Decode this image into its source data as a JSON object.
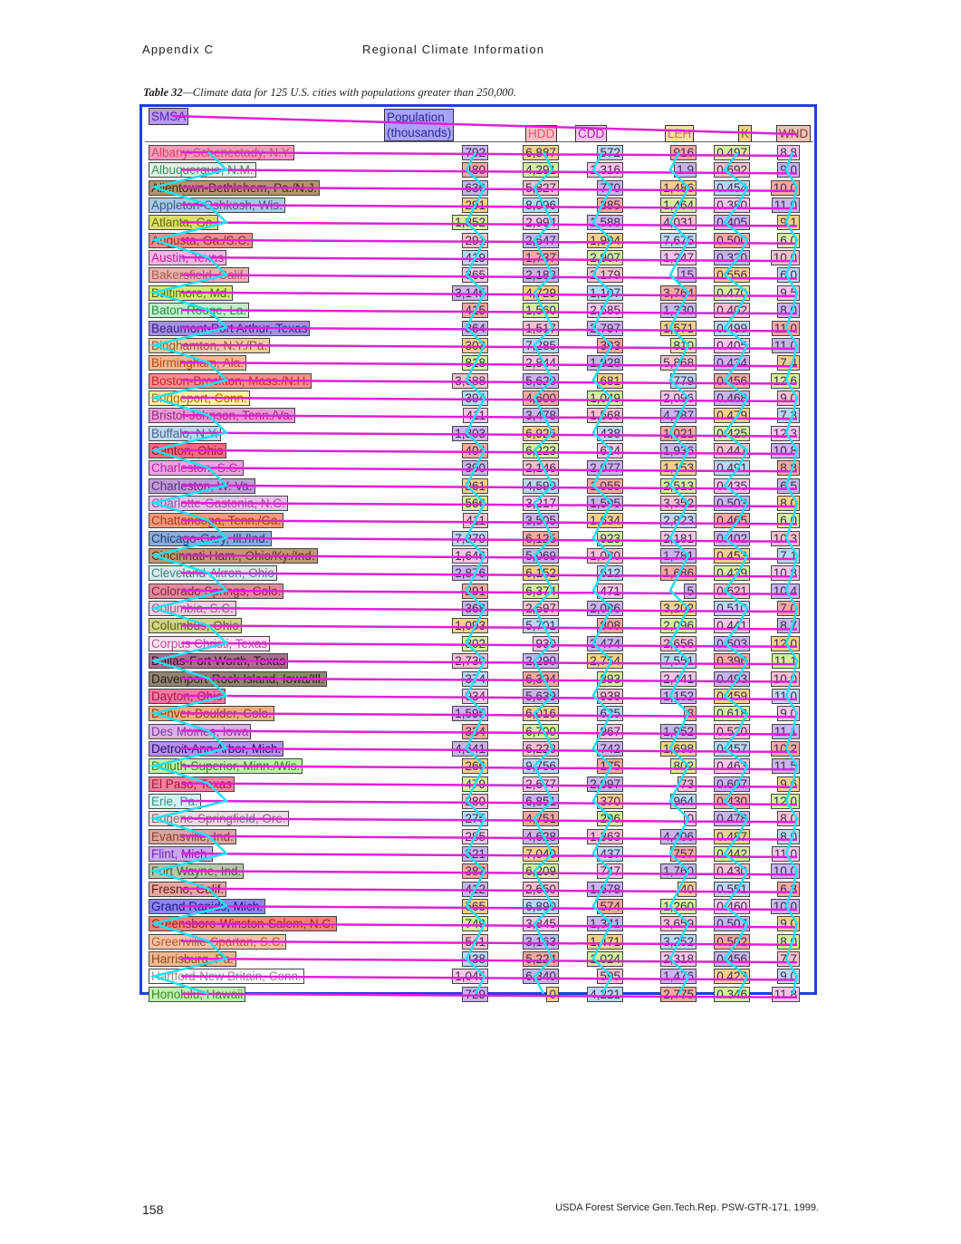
{
  "page": {
    "header_left": "Appendix C",
    "header_center": "Regional Climate Information",
    "caption_label": "Table 32",
    "caption_text": "—Climate data for 125 U.S. cities with populations greater than 250,000.",
    "footer_page": "158",
    "footer_right": "USDA Forest Service Gen.Tech.Rep. PSW-GTR-171. 1999."
  },
  "columns": {
    "smsa": "SMSA",
    "population": "Population\n(thousands)",
    "hdd": "HDD",
    "cdd": "CDD",
    "leh": "LEH",
    "k": "K",
    "wnd": "WND"
  },
  "rows": [
    {
      "name": "Albany-Schenectady, N.Y.",
      "pop": "792",
      "hdd": "6,887",
      "cdd": "572",
      "leh": "916",
      "k": "0.497",
      "wnd": "8.8",
      "bg": "#f49bb7",
      "fg": "#e0466f"
    },
    {
      "name": "Albuquerque, N.M.",
      "pop": "480",
      "hdd": "4,291",
      "cdd": "1,316",
      "leh": "1.9",
      "k": "0.692",
      "wnd": "9.0",
      "bg": "#e1f0e6",
      "fg": "#3f8f5f"
    },
    {
      "name": "Allentown-Bethlehem, Pa./N.J.",
      "pop": "636",
      "hdd": "5,827",
      "cdd": "770",
      "leh": "1,486",
      "k": "0.454",
      "wnd": "10.0",
      "bg": "#b59464",
      "fg": "#3c2c12"
    },
    {
      "name": "Appleton-Oshkosh, Wis.",
      "pop": "291",
      "hdd": "8,096",
      "cdd": "385",
      "leh": "1,464",
      "k": "0.380",
      "wnd": "11.0",
      "bg": "#a8c9e6",
      "fg": "#3c5c7c"
    },
    {
      "name": "Atlanta, Ga.",
      "pop": "1,852",
      "hdd": "2,994",
      "cdd": "1,588",
      "leh": "4,031",
      "k": "0.405",
      "wnd": "9.1",
      "bg": "#d7df6f",
      "fg": "#6c6a00"
    },
    {
      "name": "Augusta, Ga./S.C.",
      "pop": "291",
      "hdd": "2,547",
      "cdd": "1,994",
      "leh": "7,675",
      "k": "0.500",
      "wnd": "6.0",
      "bg": "#f08d8d",
      "fg": "#a12626"
    },
    {
      "name": "Austin, Texas",
      "pop": "419",
      "hdd": "1,737",
      "cdd": "2,907",
      "leh": "1,247",
      "k": "0.320",
      "wnd": "10.0",
      "bg": "#f6b5e6",
      "fg": "#c0249b"
    },
    {
      "name": "Bakersfield, Calif.",
      "pop": "365",
      "hdd": "2,183",
      "cdd": "2,179",
      "leh": "15",
      "k": "0.556",
      "wnd": "6.0",
      "bg": "#e9b3ac",
      "fg": "#a85d51"
    },
    {
      "name": "Baltimore, Md.",
      "pop": "3,145",
      "hdd": "4,729",
      "cdd": "1,107",
      "leh": "3,764",
      "k": "0.470",
      "wnd": "9.5",
      "bg": "#d2ea73",
      "fg": "#52630a"
    },
    {
      "name": "Baton Rouge, La.",
      "pop": "415",
      "hdd": "1,560",
      "cdd": "2,585",
      "leh": "1,330",
      "k": "0.402",
      "wnd": "8.0",
      "bg": "#c1f0c9",
      "fg": "#2c8e47"
    },
    {
      "name": "Beaumont-Port Arthur, Texas",
      "pop": "364",
      "hdd": "1,517",
      "cdd": "2,797",
      "leh": "1,571",
      "k": "0.499",
      "wnd": "11.0",
      "bg": "#a391e0",
      "fg": "#3a1e8c"
    },
    {
      "name": "Binghamton, N.Y./Pa.",
      "pop": "303",
      "hdd": "7,285",
      "cdd": "393",
      "leh": "810",
      "k": "0.405",
      "wnd": "11.0",
      "bg": "#f1caa0",
      "fg": "#8a5d2a"
    },
    {
      "name": "Birmingham, Ala.",
      "pop": "818",
      "hdd": "2,844",
      "cdd": "1,928",
      "leh": "5,868",
      "k": "0.434",
      "wnd": "7.4",
      "bg": "#f7b692",
      "fg": "#b04b13"
    },
    {
      "name": "Boston-Brockton, Mass./N.H.",
      "pop": "3,688",
      "hdd": "5,620",
      "cdd": "681",
      "leh": "779",
      "k": "0.456",
      "wnd": "12.6",
      "bg": "#f58e8e",
      "fg": "#c42b2b"
    },
    {
      "name": "Bridgeport, Conn.",
      "pop": "394",
      "hdd": "4,600",
      "cdd": "1,049",
      "leh": "2,096",
      "k": "0.468",
      "wnd": "9.0",
      "bg": "#fff0a4",
      "fg": "#b06a00"
    },
    {
      "name": "Bristol-Johnson, Tenn./Va.",
      "pop": "411",
      "hdd": "3,478",
      "cdd": "1,568",
      "leh": "4,787",
      "k": "0.479",
      "wnd": "7.3",
      "bg": "#e99ad6",
      "fg": "#9c2a7b"
    },
    {
      "name": "Buffalo, N.Y.",
      "pop": "1,303",
      "hdd": "6,926",
      "cdd": "438",
      "leh": "1,021",
      "k": "0.425",
      "wnd": "12.3",
      "bg": "#bfd7ee",
      "fg": "#476a8d"
    },
    {
      "name": "Canton, Ohio",
      "pop": "404",
      "hdd": "6,223",
      "cdd": "624",
      "leh": "1,936",
      "k": "0.441",
      "wnd": "10.8",
      "bg": "#f26b80",
      "fg": "#a8142d"
    },
    {
      "name": "Charleston, S.C.",
      "pop": "390",
      "hdd": "2,146",
      "cdd": "2,077",
      "leh": "1,153",
      "k": "0.491",
      "wnd": "8.8",
      "bg": "#f0a1e3",
      "fg": "#b7289f"
    },
    {
      "name": "Charleston, W. Va.",
      "pop": "261",
      "hdd": "4,590",
      "cdd": "1,055",
      "leh": "2,513",
      "k": "0.435",
      "wnd": "6.5",
      "bg": "#be9bd6",
      "fg": "#5a2f7e"
    },
    {
      "name": "Charlotte-Gastonia, N.C.",
      "pop": "566",
      "hdd": "3,217",
      "cdd": "1,595",
      "leh": "3,352",
      "k": "0.503",
      "wnd": "8.0",
      "bg": "#e7c0ec",
      "fg": "#9a4ea6"
    },
    {
      "name": "Chattanooga, Tenn./Ga.",
      "pop": "411",
      "hdd": "3,505",
      "cdd": "1,634",
      "leh": "2,823",
      "k": "0.465",
      "wnd": "6.0",
      "bg": "#f79a7c",
      "fg": "#a63a18"
    },
    {
      "name": "Chicago-Gary, Ill./Ind.",
      "pop": "7,879",
      "hdd": "6,125",
      "cdd": "923",
      "leh": "2,181",
      "k": "0.402",
      "wnd": "10.3",
      "bg": "#8bacd7",
      "fg": "#1d3e72"
    },
    {
      "name": "Cincinnati-Ham., Ohio/Ky./Ind.",
      "pop": "1,646",
      "hdd": "5,069",
      "cdd": "1,080",
      "leh": "1,781",
      "k": "0.453",
      "wnd": "7.1",
      "bg": "#c09872",
      "fg": "#553315"
    },
    {
      "name": "Cleveland-Akron, Ohio",
      "pop": "2,876",
      "hdd": "6,152",
      "cdd": "612",
      "leh": "1,686",
      "k": "0.439",
      "wnd": "10.8",
      "bg": "#d6ebea",
      "fg": "#4a7f7a"
    },
    {
      "name": "Colorado Springs, Colo.",
      "pop": "291",
      "hdd": "6,374",
      "cdd": "471",
      "leh": "5",
      "k": "0.621",
      "wnd": "10.4",
      "bg": "#e08b9e",
      "fg": "#8a2340"
    },
    {
      "name": "Columbia, S.C.",
      "pop": "368",
      "hdd": "2,597",
      "cdd": "2,086",
      "leh": "3,202",
      "k": "0.510",
      "wnd": "7.0",
      "bg": "#edcfe0",
      "fg": "#a05a86"
    },
    {
      "name": "Columbus, Ohio",
      "pop": "1,093",
      "hdd": "5,701",
      "cdd": "808",
      "leh": "2,096",
      "k": "0.441",
      "wnd": "8.7",
      "bg": "#cfd583",
      "fg": "#5c6212"
    },
    {
      "name": "Corpus Christi, Texas",
      "pop": "302",
      "hdd": "930",
      "cdd": "3,474",
      "leh": "2,656",
      "k": "0.503",
      "wnd": "12.0",
      "bg": "#fbe3f2",
      "fg": "#b0578e"
    },
    {
      "name": "Dallas-Fort Worth, Texas",
      "pop": "2,730",
      "hdd": "2,290",
      "cdd": "2,754",
      "leh": "7,551",
      "k": "0.396",
      "wnd": "11.1",
      "bg": "#ad6c8f",
      "fg": "#3a0f29"
    },
    {
      "name": "Davenport-Rock Island, Iowa/Ill.",
      "pop": "374",
      "hdd": "6,394",
      "cdd": "893",
      "leh": "2,441",
      "k": "0.493",
      "wnd": "10.0",
      "bg": "#908470",
      "fg": "#2a2418"
    },
    {
      "name": "Dayton, Ohio",
      "pop": "934",
      "hdd": "5,639",
      "cdd": "938",
      "leh": "1,152",
      "k": "0.459",
      "wnd": "11.0",
      "bg": "#f578a2",
      "fg": "#b5124f"
    },
    {
      "name": "Denver-Boulder, Colo.",
      "pop": "1,595",
      "hdd": "6,016",
      "cdd": "625",
      "leh": "8",
      "k": "0.618",
      "wnd": "9.0",
      "bg": "#f0ad82",
      "fg": "#8c3d07"
    },
    {
      "name": "Des Moines, Iowa",
      "pop": "334",
      "hdd": "6,700",
      "cdd": "967",
      "leh": "1,952",
      "k": "0.520",
      "wnd": "11.1",
      "bg": "#dcb1eb",
      "fg": "#7a3e9a"
    },
    {
      "name": "Detroit-Ann Arbor, Mich.",
      "pop": "4,641",
      "hdd": "6,228",
      "cdd": "742",
      "leh": "1,698",
      "k": "0.457",
      "wnd": "10.2",
      "bg": "#b78fee",
      "fg": "#2c0d61"
    },
    {
      "name": "Duluth-Superior, Minn./Wis.",
      "pop": "266",
      "hdd": "9,756",
      "cdd": "175",
      "leh": "802",
      "k": "0.463",
      "wnd": "11.5",
      "bg": "#bff2aa",
      "fg": "#3b7c1e"
    },
    {
      "name": "El Paso, Texas",
      "pop": "479",
      "hdd": "2,677",
      "cdd": "2,097",
      "leh": "73",
      "k": "0.607",
      "wnd": "9.6",
      "bg": "#f2819d",
      "fg": "#a51640"
    },
    {
      "name": "Erie, Pa.",
      "pop": "280",
      "hdd": "6,851",
      "cdd": "370",
      "leh": "964",
      "k": "0.430",
      "wnd": "12.0",
      "bg": "#d1f2ef",
      "fg": "#3f8d86"
    },
    {
      "name": "Eugene-Springfield, Ore.",
      "pop": "275",
      "hdd": "4,751",
      "cdd": "296",
      "leh": "0",
      "k": "0.478",
      "wnd": "8.0",
      "bg": "#eadde0",
      "fg": "#8a6a72"
    },
    {
      "name": "Evansville, Ind.",
      "pop": "285",
      "hdd": "4,628",
      "cdd": "1,363",
      "leh": "4,406",
      "k": "0.487",
      "wnd": "8.0",
      "bg": "#d8a7a1",
      "fg": "#8b3d33"
    },
    {
      "name": "Flint, Mich.",
      "pop": "521",
      "hdd": "7,040",
      "cdd": "437",
      "leh": "757",
      "k": "0.442",
      "wnd": "11.0",
      "bg": "#cda8f0",
      "fg": "#6d27b3"
    },
    {
      "name": "Fort Wayne, Ind.",
      "pop": "383",
      "hdd": "6,209",
      "cdd": "747",
      "leh": "1,760",
      "k": "0.430",
      "wnd": "10.0",
      "bg": "#b9c4ad",
      "fg": "#4b5a3c"
    },
    {
      "name": "Fresno, Calif.",
      "pop": "412",
      "hdd": "2,650",
      "cdd": "1,678",
      "leh": "40",
      "k": "0.551",
      "wnd": "6.3",
      "bg": "#e6a9a1",
      "fg": "#5e1f17"
    },
    {
      "name": "Grand Rapids, Mich.",
      "pop": "565",
      "hdd": "6,890",
      "cdd": "574",
      "leh": "1,260",
      "k": "0.460",
      "wnd": "10.0",
      "bg": "#8e86ee",
      "fg": "#1c168d"
    },
    {
      "name": "Greensboro-Winston-Salem, N.C.",
      "pop": "749",
      "hdd": "3,845",
      "cdd": "1,341",
      "leh": "3,659",
      "k": "0.507",
      "wnd": "9.0",
      "bg": "#f0827a",
      "fg": "#a0241a"
    },
    {
      "name": "Greenville-Spartan, S.C.",
      "pop": "541",
      "hdd": "3,163",
      "cdd": "1,471",
      "leh": "3,252",
      "k": "0.502",
      "wnd": "8.0",
      "bg": "#f6c1a6",
      "fg": "#b45c2b"
    },
    {
      "name": "Harrisburg, Pa.",
      "pop": "438",
      "hdd": "5,224",
      "cdd": "1,024",
      "leh": "2,318",
      "k": "0.456",
      "wnd": "7.7",
      "bg": "#f1b88f",
      "fg": "#8c4b1d"
    },
    {
      "name": "Hartford-New Britain, Conn.",
      "pop": "1,045",
      "hdd": "6,340",
      "cdd": "595",
      "leh": "1,476",
      "k": "0.423",
      "wnd": "9.0",
      "bg": "#ffffff",
      "fg": "#8a8a8a"
    },
    {
      "name": "Honolulu, Hawaii",
      "pop": "729",
      "hdd": "0",
      "cdd": "4,221",
      "leh": "2,775",
      "k": "0.346",
      "wnd": "11.8",
      "bg": "#bff0b0",
      "fg": "#3b8a2a"
    }
  ]
}
